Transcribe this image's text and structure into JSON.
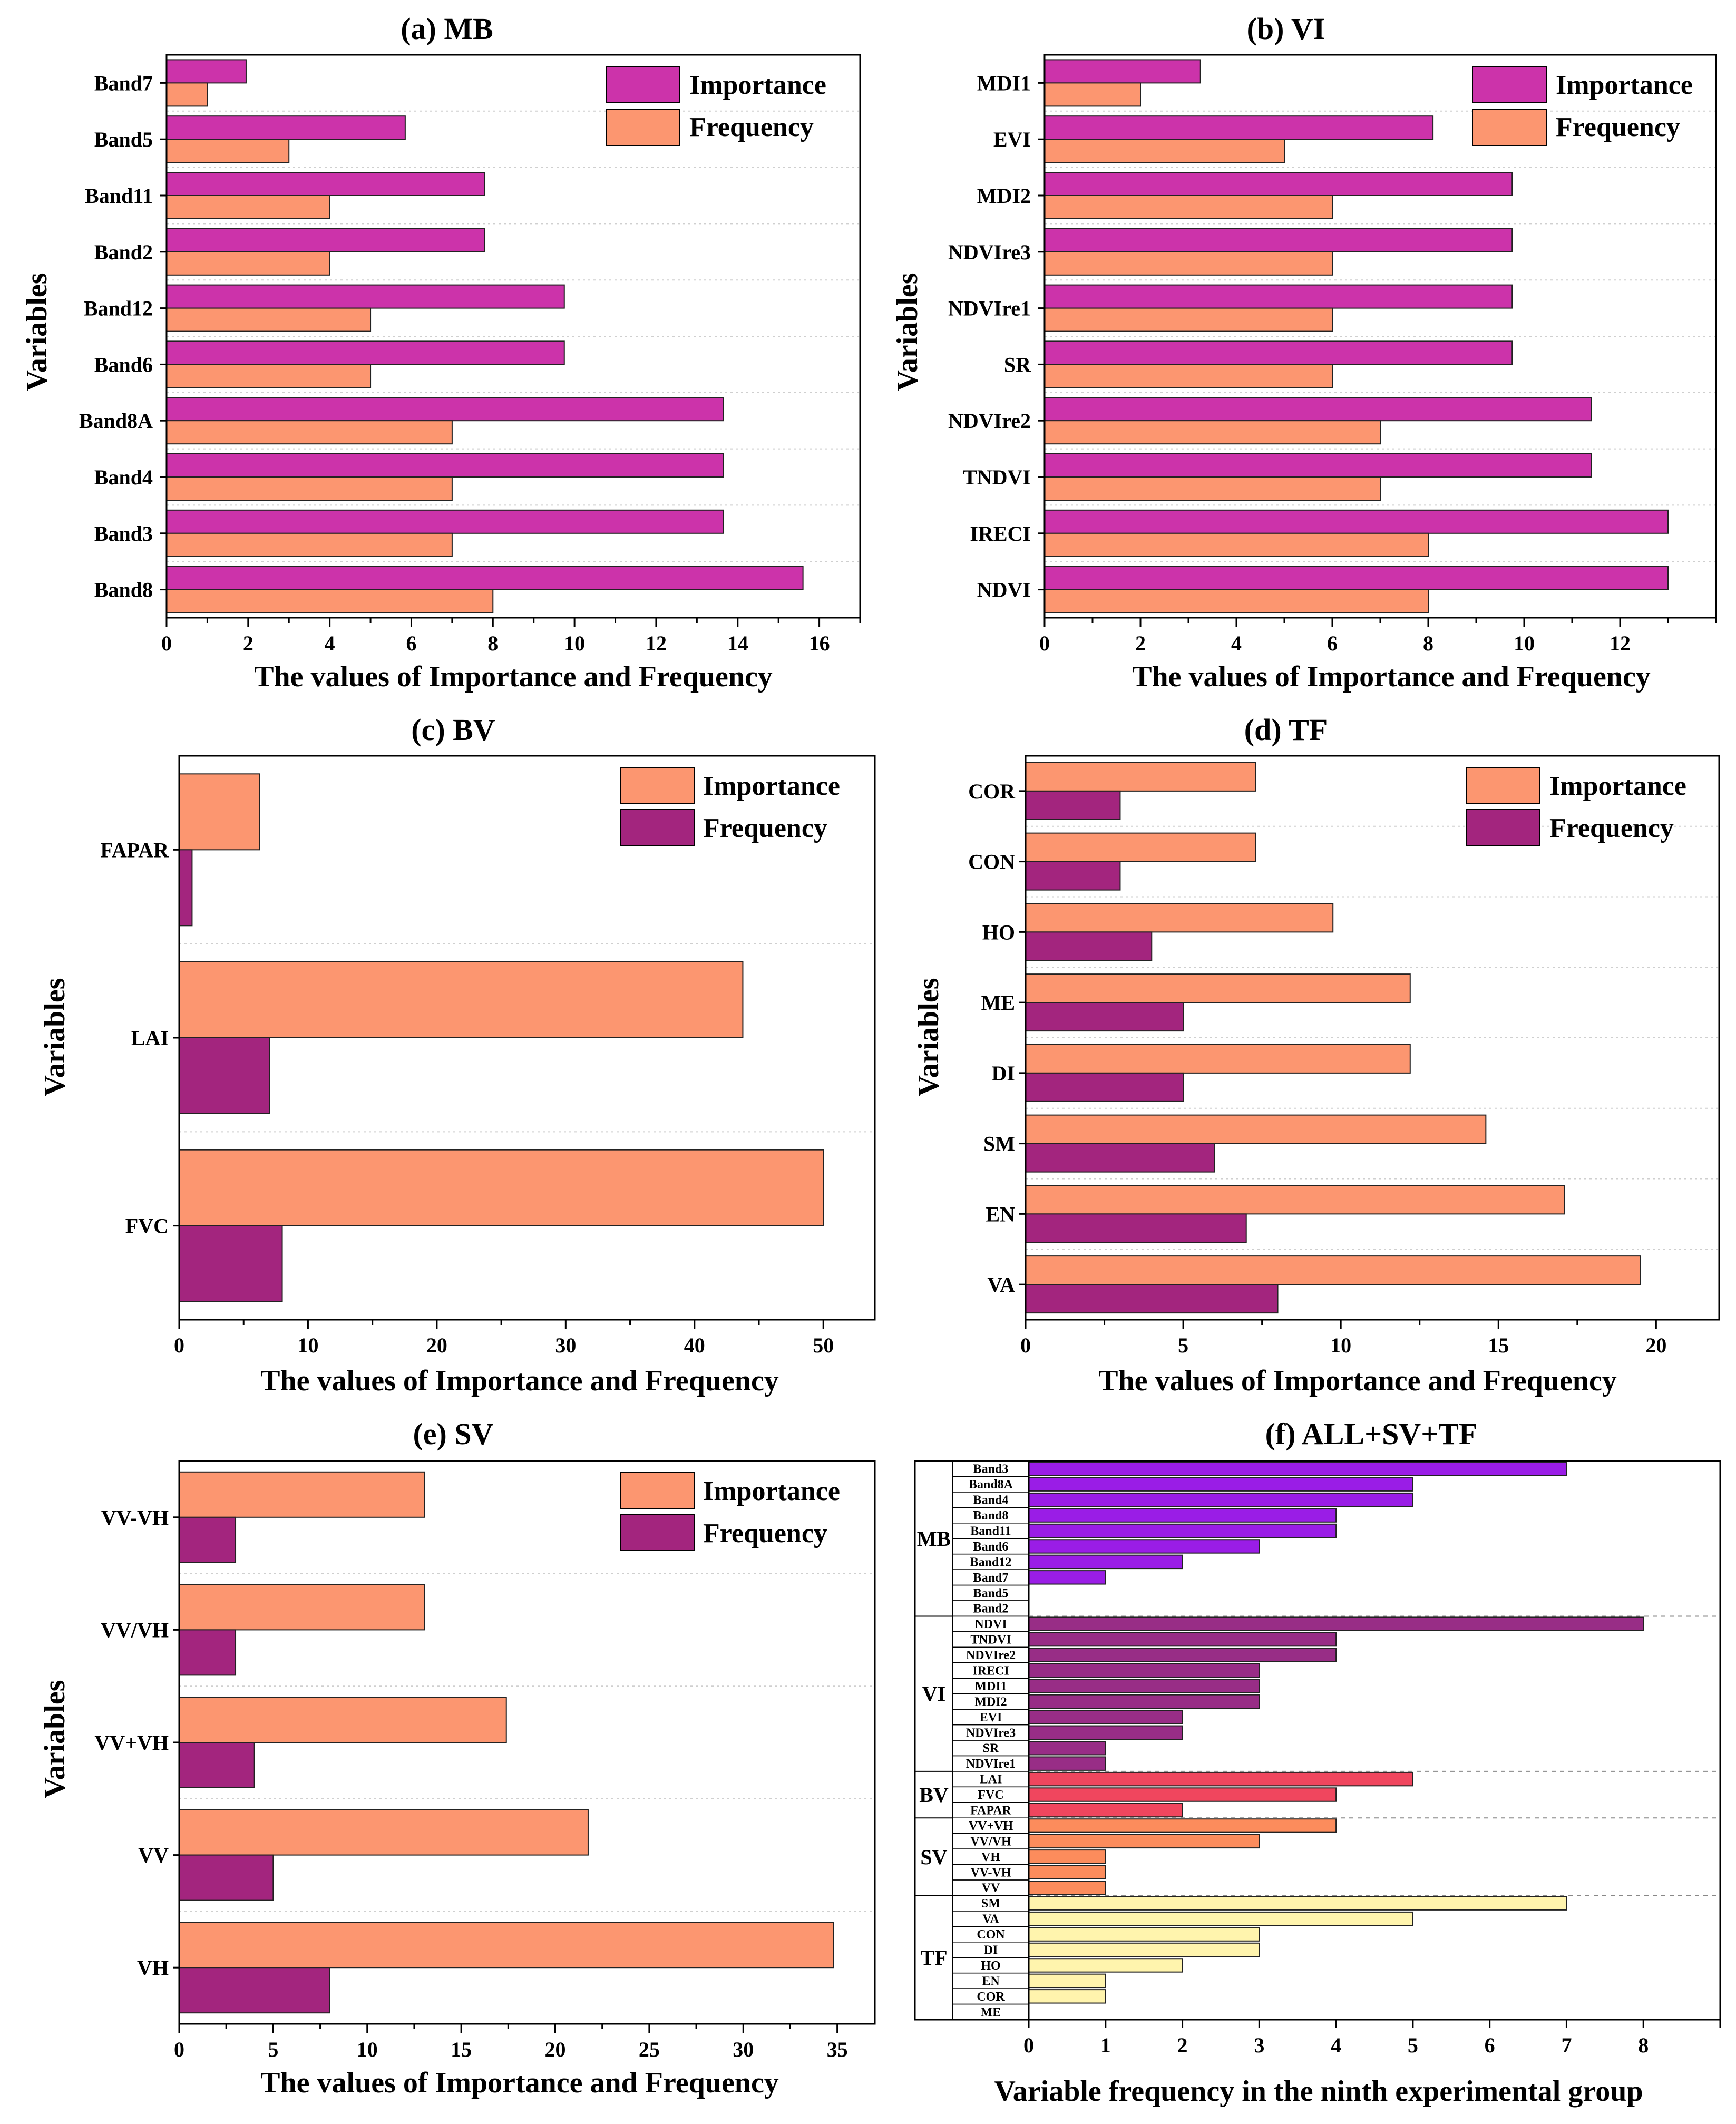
{
  "figure": {
    "x_axis_label": "The values of Importance and Frequency",
    "y_axis_label": "Variables"
  },
  "colors": {
    "magenta": "#cc33aa",
    "salmon": "#fc9670",
    "plum": "#a3257e",
    "mb": "#9a1de6",
    "vi": "#982d86",
    "bv": "#f0465e",
    "sv": "#fc8c5c",
    "tf": "#fff4ad"
  },
  "chart_data": [
    {
      "id": "a",
      "type": "bar",
      "orientation": "horizontal",
      "title": "(a) MB",
      "xlabel": "The values of Importance and Frequency",
      "ylabel": "Variables",
      "xlim": [
        0,
        17
      ],
      "xticks": [
        0,
        2,
        4,
        6,
        8,
        10,
        12,
        14,
        16
      ],
      "minor": 1,
      "categories": [
        "Band7",
        "Band5",
        "Band11",
        "Band2",
        "Band12",
        "Band6",
        "Band8A",
        "Band4",
        "Band3",
        "Band8"
      ],
      "series": [
        {
          "name": "Importance",
          "color": "#cc33aa",
          "values": [
            1.95,
            5.85,
            7.8,
            7.8,
            9.75,
            9.75,
            13.65,
            13.65,
            13.65,
            15.6
          ]
        },
        {
          "name": "Frequency",
          "color": "#fc9670",
          "values": [
            1,
            3,
            4,
            4,
            5,
            5,
            7,
            7,
            7,
            8
          ]
        }
      ],
      "legend": "top-right",
      "grid": "horizontal dotted"
    },
    {
      "id": "b",
      "type": "bar",
      "orientation": "horizontal",
      "title": "(b) VI",
      "xlabel": "The values of Importance and Frequency",
      "ylabel": "Variables",
      "xlim": [
        0,
        14
      ],
      "xticks": [
        0,
        2,
        4,
        6,
        8,
        10,
        12
      ],
      "minor": 1,
      "categories": [
        "MDI1",
        "EVI",
        "MDI2",
        "NDVIre3",
        "NDVIre1",
        "SR",
        "NDVIre2",
        "TNDVI",
        "IRECI",
        "NDVI"
      ],
      "series": [
        {
          "name": "Importance",
          "color": "#cc33aa",
          "values": [
            3.25,
            8.1,
            9.75,
            9.75,
            9.75,
            9.75,
            11.4,
            11.4,
            13.0,
            13.0
          ]
        },
        {
          "name": "Frequency",
          "color": "#fc9670",
          "values": [
            2,
            5,
            6,
            6,
            6,
            6,
            7,
            7,
            8,
            8
          ]
        }
      ],
      "legend": "top-right",
      "grid": "horizontal dotted"
    },
    {
      "id": "c",
      "type": "bar",
      "orientation": "horizontal",
      "title": "(c) BV",
      "xlabel": "The values of Importance and Frequency",
      "ylabel": "Variables",
      "xlim": [
        0,
        54
      ],
      "xticks": [
        0,
        10,
        20,
        30,
        40,
        50
      ],
      "minor": 5,
      "categories": [
        "FAPAR",
        "LAI",
        "FVC"
      ],
      "series": [
        {
          "name": "Importance",
          "color": "#fc9670",
          "values": [
            6.25,
            43.75,
            50
          ]
        },
        {
          "name": "Frequency",
          "color": "#a3257e",
          "values": [
            1,
            7,
            8
          ]
        }
      ],
      "legend": "top-right",
      "grid": "horizontal dotted"
    },
    {
      "id": "d",
      "type": "bar",
      "orientation": "horizontal",
      "title": "(d) TF",
      "xlabel": "The values of Importance and Frequency",
      "ylabel": "Variables",
      "xlim": [
        0,
        22
      ],
      "xticks": [
        0,
        5,
        10,
        15,
        20
      ],
      "minor": 2.5,
      "categories": [
        "COR",
        "CON",
        "HO",
        "ME",
        "DI",
        "SM",
        "EN",
        "VA"
      ],
      "series": [
        {
          "name": "Importance",
          "color": "#fc9670",
          "values": [
            7.3,
            7.3,
            9.75,
            12.2,
            12.2,
            14.6,
            17.1,
            19.5
          ]
        },
        {
          "name": "Frequency",
          "color": "#a3257e",
          "values": [
            3,
            3,
            4,
            5,
            5,
            6,
            7,
            8
          ]
        }
      ],
      "legend": "top-right",
      "grid": "horizontal dotted"
    },
    {
      "id": "e",
      "type": "bar",
      "orientation": "horizontal",
      "title": "(e) SV",
      "xlabel": "The values of Importance and Frequency",
      "ylabel": "Variables",
      "xlim": [
        0,
        37
      ],
      "xticks": [
        0,
        5,
        10,
        15,
        20,
        25,
        30,
        35
      ],
      "minor": 2.5,
      "categories": [
        "VV-VH",
        "VV/VH",
        "VV+VH",
        "VV",
        "VH"
      ],
      "series": [
        {
          "name": "Importance",
          "color": "#fc9670",
          "values": [
            13.05,
            13.05,
            17.4,
            21.75,
            34.8
          ]
        },
        {
          "name": "Frequency",
          "color": "#a3257e",
          "values": [
            3,
            3,
            4,
            5,
            8
          ]
        }
      ],
      "legend": "top-right",
      "grid": "horizontal dotted"
    },
    {
      "id": "f",
      "type": "bar",
      "orientation": "horizontal",
      "title": "(f) ALL+SV+TF",
      "xlabel": "Variable frequency in the ninth experimental group",
      "xlim": [
        0,
        9
      ],
      "xticks": [
        0,
        1,
        2,
        3,
        4,
        5,
        6,
        7,
        8
      ],
      "groups": [
        {
          "name": "MB",
          "color": "#9a1de6",
          "categories": [
            "Band3",
            "Band8A",
            "Band4",
            "Band8",
            "Band11",
            "Band6",
            "Band12",
            "Band7",
            "Band5",
            "Band2"
          ],
          "values": [
            7,
            5,
            5,
            4,
            4,
            3,
            2,
            1,
            0,
            0
          ]
        },
        {
          "name": "VI",
          "color": "#982d86",
          "categories": [
            "NDVI",
            "TNDVI",
            "NDVIre2",
            "IRECI",
            "MDI1",
            "MDI2",
            "EVI",
            "NDVIre3",
            "SR",
            "NDVIre1"
          ],
          "values": [
            8,
            4,
            4,
            3,
            3,
            3,
            2,
            2,
            1,
            1
          ]
        },
        {
          "name": "BV",
          "color": "#f0465e",
          "categories": [
            "LAI",
            "FVC",
            "FAPAR"
          ],
          "values": [
            5,
            4,
            2
          ]
        },
        {
          "name": "SV",
          "color": "#fc8c5c",
          "categories": [
            "VV+VH",
            "VV/VH",
            "VH",
            "VV-VH",
            "VV"
          ],
          "values": [
            4,
            3,
            1,
            1,
            1
          ]
        },
        {
          "name": "TF",
          "color": "#fff4ad",
          "categories": [
            "SM",
            "VA",
            "CON",
            "DI",
            "HO",
            "EN",
            "COR",
            "ME"
          ],
          "values": [
            7,
            5,
            3,
            3,
            2,
            1,
            1,
            0
          ]
        }
      ],
      "grid": "group separators dashed"
    }
  ]
}
